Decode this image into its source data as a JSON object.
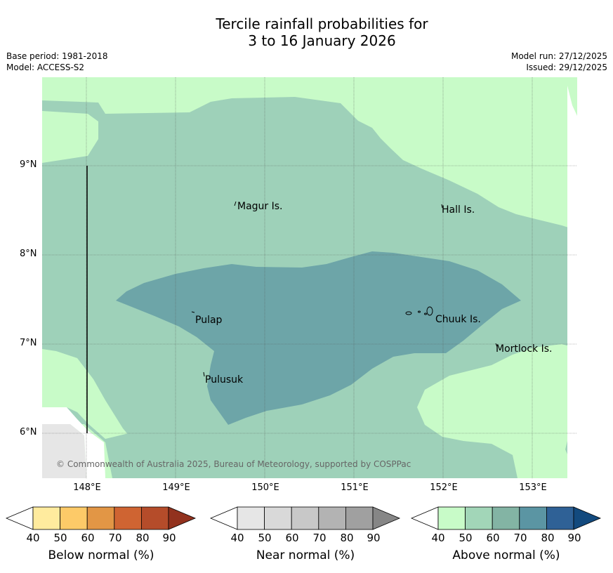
{
  "title": {
    "line1": "Tercile rainfall probabilities for",
    "line2": "3 to 16 January 2026"
  },
  "meta": {
    "base_period": "Base period: 1981-2018",
    "model": "Model: ACCESS-S2",
    "model_run": "Model run: 27/12/2025",
    "issued": "Issued: 29/12/2025"
  },
  "map": {
    "x_ticks": [
      "148°E",
      "149°E",
      "150°E",
      "151°E",
      "152°E",
      "153°E"
    ],
    "y_ticks": [
      "9°N",
      "8°N",
      "7°N",
      "6°N"
    ],
    "places": [
      {
        "name": "Magur Is."
      },
      {
        "name": "Hall Is."
      },
      {
        "name": "Pulap"
      },
      {
        "name": "Chuuk Is."
      },
      {
        "name": "Mortlock Is."
      },
      {
        "name": "Pulusuk"
      }
    ],
    "copyright": "© Commonwealth of Australia 2025, Bureau of Meteorology, supported by COSPPac",
    "colors": {
      "above_50": "#c8fbc8",
      "above_60": "#9ed1b9",
      "above_70": "#6da5a8",
      "near_40": "#e6e6e6"
    }
  },
  "legends": [
    {
      "label": "Below normal (%)",
      "ticks": [
        "40",
        "50",
        "60",
        "70",
        "80",
        "90"
      ],
      "colors": [
        "#ffffff",
        "#ffeb9e",
        "#fdca68",
        "#e29645",
        "#cf6432",
        "#b54c2a",
        "#92321e"
      ]
    },
    {
      "label": "Near normal (%)",
      "ticks": [
        "40",
        "50",
        "60",
        "70",
        "80",
        "90"
      ],
      "colors": [
        "#ffffff",
        "#e6e6e6",
        "#d9d9d9",
        "#c8c8c8",
        "#b3b3b3",
        "#a0a0a0",
        "#868686"
      ]
    },
    {
      "label": "Above normal (%)",
      "ticks": [
        "40",
        "50",
        "60",
        "70",
        "80",
        "90"
      ],
      "colors": [
        "#ffffff",
        "#c8fbc8",
        "#a2d6b8",
        "#83b4a4",
        "#5b95a3",
        "#2f6196",
        "#134a7e"
      ]
    }
  ]
}
